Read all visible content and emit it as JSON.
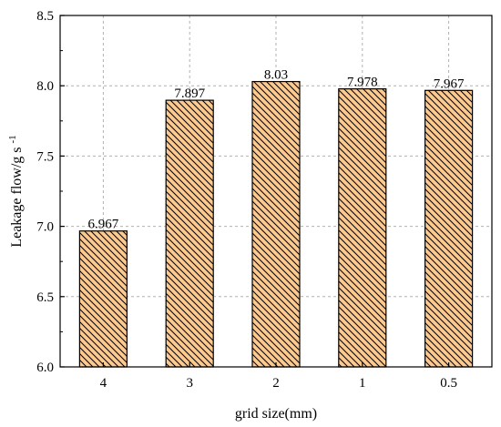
{
  "chart_data": {
    "type": "bar",
    "categories": [
      "4",
      "3",
      "2",
      "1",
      "0.5"
    ],
    "values": [
      6.967,
      7.897,
      8.03,
      7.978,
      7.967
    ],
    "data_labels": [
      "6.967",
      "7.897",
      "8.03",
      "7.978",
      "7.967"
    ],
    "xlabel": "grid size(mm)",
    "ylabel_main": "Leakage flow/g s",
    "ylabel_sup": "-1",
    "ylim": [
      6.0,
      8.5
    ],
    "yticks": [
      6.0,
      6.5,
      7.0,
      7.5,
      8.0,
      8.5
    ],
    "ytick_labels": [
      "6.0",
      "6.5",
      "7.0",
      "7.5",
      "8.0",
      "8.5"
    ],
    "grid": true,
    "bar_fill": "#fcc98e",
    "bar_hatch": "diagonal-lines"
  }
}
